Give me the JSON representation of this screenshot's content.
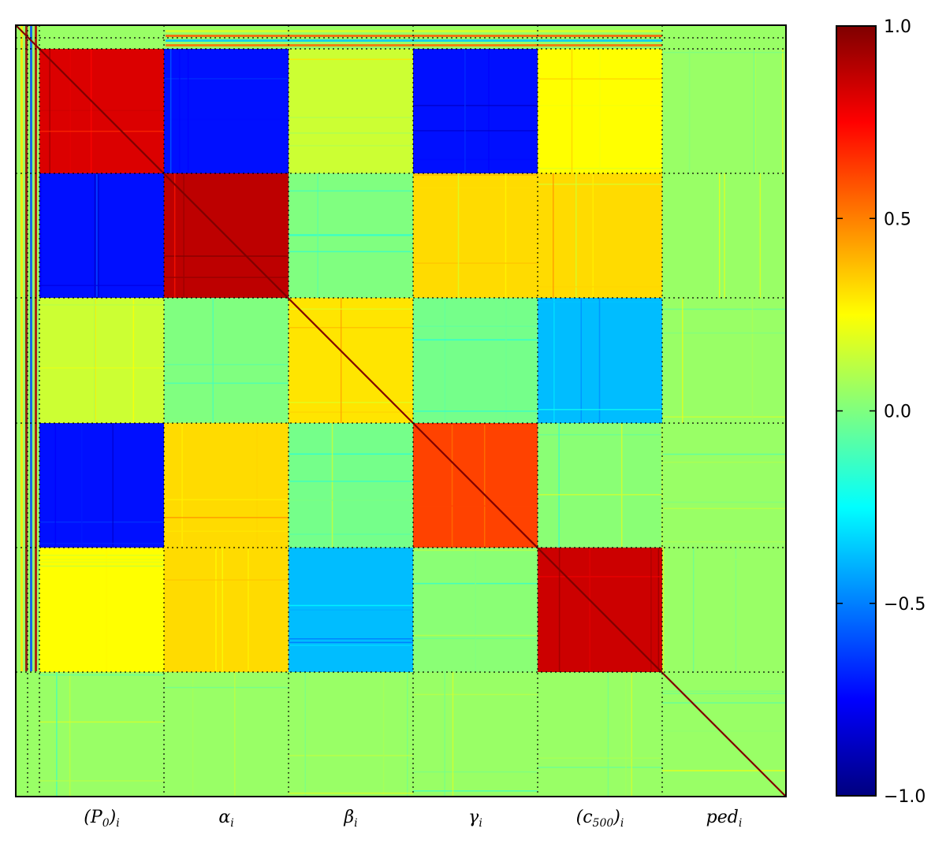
{
  "chart_data": {
    "type": "heatmap",
    "title": "",
    "description_free": true,
    "matrix_blocks": [
      "(P0)i",
      "αi",
      "βi",
      "γi",
      "(c500)i",
      "pedi"
    ],
    "categories": [
      {
        "base": "(P",
        "sub": "0",
        "suffix": ")",
        "index": "i"
      },
      {
        "base": "α",
        "sub": "",
        "suffix": "",
        "index": "i"
      },
      {
        "base": "β",
        "sub": "",
        "suffix": "",
        "index": "i"
      },
      {
        "base": "γ",
        "sub": "",
        "suffix": "",
        "index": "i"
      },
      {
        "base": "(c",
        "sub": "500",
        "suffix": ")",
        "index": "i"
      },
      {
        "base": "ped",
        "sub": "",
        "suffix": "",
        "index": "i"
      }
    ],
    "block_correlations": [
      [
        0.82,
        -0.72,
        0.15,
        -0.72,
        0.25,
        0.05
      ],
      [
        -0.72,
        0.88,
        0.0,
        0.32,
        0.32,
        0.05
      ],
      [
        0.15,
        0.0,
        0.3,
        -0.02,
        -0.38,
        0.05
      ],
      [
        -0.72,
        0.32,
        -0.02,
        0.62,
        0.02,
        0.05
      ],
      [
        0.25,
        0.32,
        -0.38,
        0.02,
        0.85,
        0.05
      ],
      [
        0.05,
        0.05,
        0.05,
        0.05,
        0.05,
        0.05
      ]
    ],
    "diagonal_value": 1.0,
    "colorbar": {
      "colormap": "jet",
      "range": [
        -1.0,
        1.0
      ],
      "ticks": [
        1.0,
        0.5,
        0.0,
        -0.5,
        -1.0
      ],
      "tick_labels": [
        "1.0",
        "0.5",
        "0.0",
        "−0.5",
        "−1.0"
      ]
    }
  }
}
